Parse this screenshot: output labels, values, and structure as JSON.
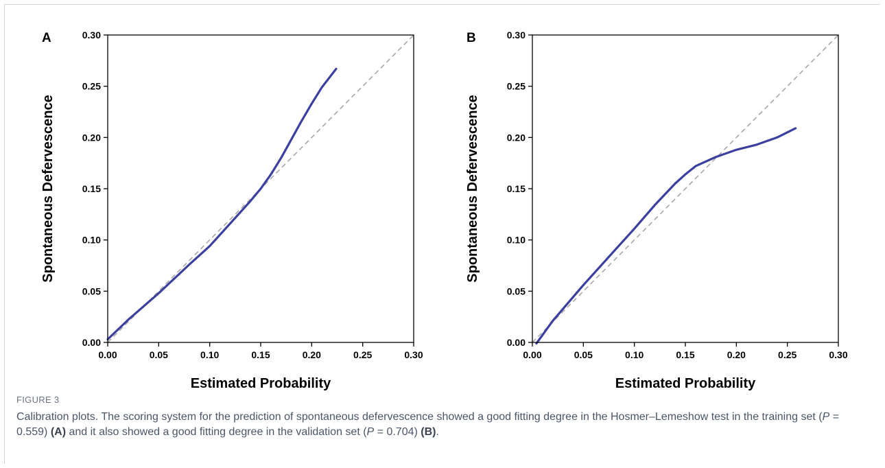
{
  "figure": {
    "label": "FIGURE 3",
    "caption": {
      "t1": "Calibration plots. The scoring system for the prediction of spontaneous defervescence showed a good fitting degree in the Hosmer–Lemeshow test in the training set (",
      "p": "P",
      "t2": " = 0.559) ",
      "ref_a": "(A)",
      "t3": " and it also showed a good fitting degree in the validation set (",
      "t4": " = 0.704) ",
      "ref_b": "(B)",
      "t5": "."
    }
  },
  "colors": {
    "curve": "#3b3fa0",
    "reference": "#a6a6a6",
    "axis": "#000000"
  },
  "chart_data": [
    {
      "panel": "A",
      "type": "line",
      "xlabel": "Estimated Probability",
      "ylabel": "Spontaneous Defervescence",
      "xlim": [
        0,
        0.3
      ],
      "ylim": [
        0,
        0.3
      ],
      "xticks": [
        "0.00",
        "0.05",
        "0.10",
        "0.15",
        "0.20",
        "0.25",
        "0.30"
      ],
      "yticks": [
        "0.00",
        "0.05",
        "0.10",
        "0.15",
        "0.20",
        "0.25",
        "0.30"
      ],
      "reference_line": {
        "style": "dashed",
        "from": [
          0,
          0
        ],
        "to": [
          0.3,
          0.3
        ]
      },
      "series": [
        {
          "x": [
            0.0,
            0.02,
            0.05,
            0.08,
            0.1,
            0.12,
            0.14,
            0.15,
            0.16,
            0.17,
            0.18,
            0.19,
            0.2,
            0.21,
            0.224
          ],
          "y": [
            0.003,
            0.022,
            0.048,
            0.076,
            0.094,
            0.116,
            0.138,
            0.15,
            0.164,
            0.18,
            0.198,
            0.216,
            0.233,
            0.249,
            0.267
          ]
        }
      ],
      "grid": false
    },
    {
      "panel": "B",
      "type": "line",
      "xlabel": "Estimated Probability",
      "ylabel": "Spontaneous Defervescence",
      "xlim": [
        0,
        0.3
      ],
      "ylim": [
        0,
        0.3
      ],
      "xticks": [
        "0.00",
        "0.05",
        "0.10",
        "0.15",
        "0.20",
        "0.25",
        "0.30"
      ],
      "yticks": [
        "0.00",
        "0.05",
        "0.10",
        "0.15",
        "0.20",
        "0.25",
        "0.30"
      ],
      "reference_line": {
        "style": "dashed",
        "from": [
          0,
          0
        ],
        "to": [
          0.3,
          0.3
        ]
      },
      "series": [
        {
          "x": [
            0.004,
            0.02,
            0.05,
            0.08,
            0.1,
            0.12,
            0.14,
            0.15,
            0.16,
            0.18,
            0.2,
            0.22,
            0.24,
            0.258
          ],
          "y": [
            -0.001,
            0.021,
            0.056,
            0.089,
            0.111,
            0.134,
            0.155,
            0.164,
            0.172,
            0.181,
            0.188,
            0.193,
            0.2,
            0.209
          ]
        }
      ],
      "grid": false
    }
  ]
}
